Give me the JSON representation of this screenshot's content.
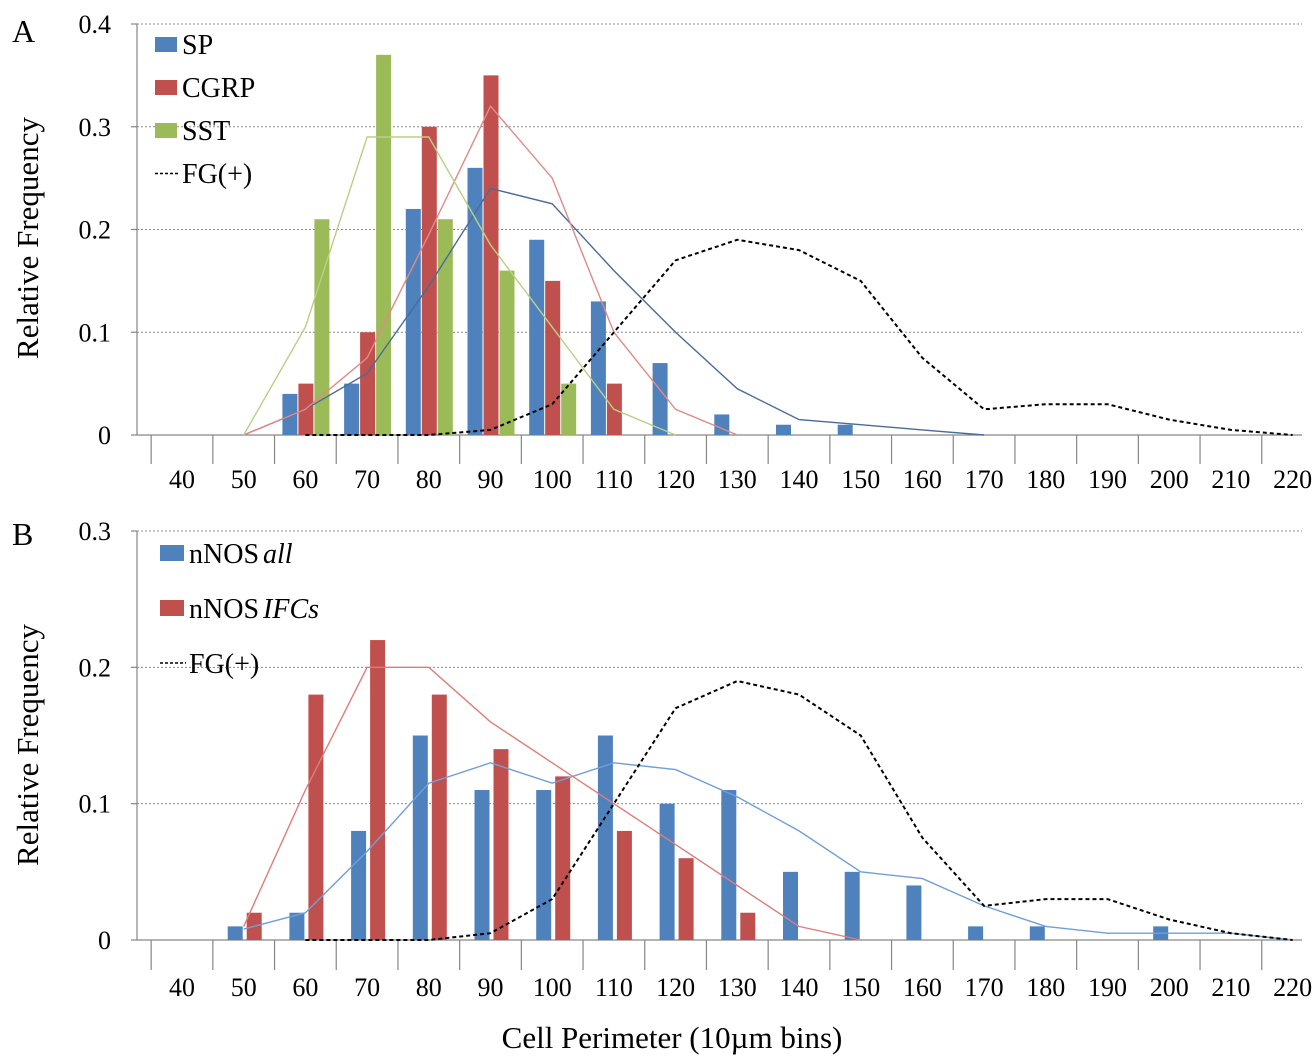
{
  "figure": {
    "xlabel": "Cell Perimeter (10µm bins)"
  },
  "chart_data": [
    {
      "panel_label": "A",
      "type": "bar",
      "ylabel": "Relative Frequency",
      "ylim": [
        0,
        0.4
      ],
      "yticks": [
        "0",
        "0.1",
        "0.2",
        "0.3",
        "0.4"
      ],
      "categories": [
        "40",
        "50",
        "60",
        "70",
        "80",
        "90",
        "100",
        "110",
        "120",
        "130",
        "140",
        "150",
        "160",
        "170",
        "180",
        "190",
        "200",
        "210",
        "220"
      ],
      "grid": true,
      "legend_position": "top-left",
      "series": [
        {
          "name": "SP",
          "kind": "bar",
          "color": "#4f81bd",
          "values": [
            0,
            0,
            0.04,
            0.05,
            0.22,
            0.26,
            0.19,
            0.13,
            0.07,
            0.02,
            0.01,
            0.01,
            0,
            0,
            0,
            0,
            0,
            0,
            0
          ]
        },
        {
          "name": "CGRP",
          "kind": "bar",
          "color": "#c0504d",
          "values": [
            0,
            0,
            0.05,
            0.1,
            0.3,
            0.35,
            0.15,
            0.05,
            0,
            0,
            0,
            0,
            0,
            0,
            0,
            0,
            0,
            0,
            0
          ]
        },
        {
          "name": "SST",
          "kind": "bar",
          "color": "#9bbb59",
          "values": [
            0,
            0,
            0.21,
            0.37,
            0.21,
            0.16,
            0.05,
            0,
            0,
            0,
            0,
            0,
            0,
            0,
            0,
            0,
            0,
            0,
            0
          ]
        },
        {
          "name": "FG(+)",
          "kind": "line",
          "color": "#000000",
          "dash": true,
          "x": [
            60,
            70,
            80,
            90,
            100,
            110,
            120,
            130,
            140,
            150,
            160,
            170,
            180,
            190,
            200,
            210,
            220
          ],
          "values": [
            0,
            0,
            0,
            0.005,
            0.03,
            0.1,
            0.17,
            0.19,
            0.18,
            0.15,
            0.075,
            0.025,
            0.03,
            0.03,
            0.015,
            0.005,
            0
          ]
        }
      ],
      "fit_lines": [
        {
          "of": "SP",
          "color": "#4a6a9a",
          "x": [
            50,
            60,
            70,
            80,
            90,
            100,
            110,
            120,
            130,
            140,
            150,
            160,
            170
          ],
          "values": [
            0,
            0.025,
            0.06,
            0.145,
            0.24,
            0.225,
            0.16,
            0.1,
            0.045,
            0.015,
            0.01,
            0.005,
            0
          ]
        },
        {
          "of": "CGRP",
          "color": "#e08a86",
          "x": [
            50,
            60,
            70,
            80,
            90,
            100,
            110,
            120,
            130
          ],
          "values": [
            0,
            0.025,
            0.075,
            0.195,
            0.32,
            0.25,
            0.1,
            0.025,
            0
          ]
        },
        {
          "of": "SST",
          "color": "#b7d086",
          "x": [
            50,
            60,
            70,
            80,
            90,
            100,
            110,
            120
          ],
          "values": [
            0,
            0.105,
            0.29,
            0.29,
            0.185,
            0.105,
            0.025,
            0
          ]
        }
      ]
    },
    {
      "panel_label": "B",
      "type": "bar",
      "ylabel": "Relative Frequency",
      "ylim": [
        0,
        0.3
      ],
      "yticks": [
        "0",
        "0.1",
        "0.2",
        "0.3"
      ],
      "categories": [
        "40",
        "50",
        "60",
        "70",
        "80",
        "90",
        "100",
        "110",
        "120",
        "130",
        "140",
        "150",
        "160",
        "170",
        "180",
        "190",
        "200",
        "210",
        "220"
      ],
      "grid": true,
      "legend_position": "top-left",
      "series": [
        {
          "name": "nNOS",
          "name_suffix": "all",
          "kind": "bar",
          "color": "#4f81bd",
          "values": [
            0,
            0.01,
            0.02,
            0.08,
            0.15,
            0.11,
            0.11,
            0.15,
            0.1,
            0.11,
            0.05,
            0.05,
            0.04,
            0.01,
            0.01,
            0,
            0.01,
            0,
            0
          ]
        },
        {
          "name": "nNOS",
          "name_suffix": "IFCs",
          "kind": "bar",
          "color": "#c0504d",
          "values": [
            0,
            0.02,
            0.18,
            0.22,
            0.18,
            0.14,
            0.12,
            0.08,
            0.06,
            0.02,
            0,
            0,
            0,
            0,
            0,
            0,
            0,
            0,
            0
          ]
        },
        {
          "name": "FG(+)",
          "kind": "line",
          "color": "#000000",
          "dash": true,
          "x": [
            60,
            70,
            80,
            90,
            100,
            110,
            120,
            130,
            140,
            150,
            160,
            170,
            180,
            190,
            200,
            210,
            220
          ],
          "values": [
            0,
            0,
            0,
            0.005,
            0.03,
            0.1,
            0.17,
            0.19,
            0.18,
            0.15,
            0.075,
            0.025,
            0.03,
            0.03,
            0.015,
            0.005,
            0
          ]
        }
      ],
      "fit_lines": [
        {
          "of": "nNOS all",
          "color": "#6f9fd8",
          "x": [
            50,
            60,
            70,
            80,
            90,
            100,
            110,
            120,
            130,
            140,
            150,
            160,
            170,
            180,
            190,
            200,
            210,
            220
          ],
          "values": [
            0.008,
            0.02,
            0.065,
            0.115,
            0.13,
            0.115,
            0.13,
            0.125,
            0.105,
            0.08,
            0.05,
            0.045,
            0.025,
            0.01,
            0.005,
            0.005,
            0.005,
            0
          ]
        },
        {
          "of": "nNOS IFCs",
          "color": "#e07c78",
          "x": [
            50,
            60,
            70,
            80,
            90,
            100,
            110,
            120,
            130,
            140,
            150
          ],
          "values": [
            0.01,
            0.11,
            0.2,
            0.2,
            0.16,
            0.13,
            0.1,
            0.07,
            0.04,
            0.01,
            0
          ]
        }
      ]
    }
  ]
}
